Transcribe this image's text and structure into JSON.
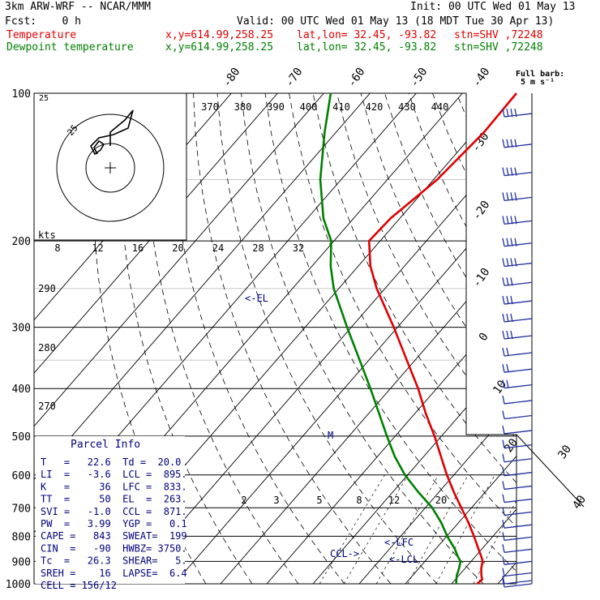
{
  "header": {
    "model": "3km ARW-WRF -- NCAR/MMM",
    "init": "Init: 00 UTC Wed 01 May 13",
    "fcst": "Fcst:    0 h",
    "valid": "Valid: 00 UTC Wed 01 May 13 (18 MDT Tue 30 Apr 13)",
    "temp_legend": "Temperature",
    "dew_legend": "Dewpoint temperature",
    "xy": "x,y=614.99,258.25",
    "latlon": "lat,lon= 32.45, -93.82",
    "stn": "stn=SHV ,72248"
  },
  "colors": {
    "temperature": "#e00000",
    "dewpoint": "#008000",
    "annotation": "#00007f",
    "barb": "#1f2fa0"
  },
  "barb_legend": {
    "line1": "Full barb:",
    "line2": "5 m s⁻¹"
  },
  "parcel_info": {
    "title": "Parcel Info",
    "rows": [
      "T   =   22.6  Td =  20.0",
      "LI  =   -3.6  LCL =  895.",
      "K   =     36  LFC =  833.",
      "TT  =     50  EL  =  263.",
      "SVI =   -1.0  CCL =  871.",
      "PW  =   3.99  YGP =   0.1",
      "CAPE =   843  SWEAT=  199",
      "CIN  =   -90  HWBZ= 3750.",
      "Tc  =   26.3  SHEAR=   5.",
      "SREH =    16  LAPSE=  6.4",
      "CELL = 156/12"
    ]
  },
  "chart_data": {
    "type": "line",
    "title": "",
    "y_axis_label": "",
    "pressure_ticks": [
      "100",
      "200",
      "300",
      "400",
      "500",
      "600",
      "700",
      "800",
      "900",
      "1000"
    ],
    "pressure_levels": [
      100,
      200,
      300,
      400,
      500,
      600,
      700,
      800,
      900,
      1000
    ],
    "isotherm_labels": [
      "-80",
      "-70",
      "-60",
      "-50",
      "-40",
      "-30",
      "-20",
      "-10",
      "0",
      "10",
      "20",
      "30",
      "40"
    ],
    "theta_labels": [
      "370",
      "380",
      "390",
      "400",
      "410",
      "420",
      "430",
      "440"
    ],
    "dry_adiabat_labels": [
      "290",
      "280",
      "270"
    ],
    "wind_speed_label": "kts",
    "wind_speed_ticks": [
      "8",
      "12",
      "16",
      "20",
      "24",
      "28",
      "32"
    ],
    "mixing_ratio_labels": [
      "2",
      "3",
      "5",
      "8",
      "12",
      "20"
    ],
    "hodograph_ring_label": "25",
    "annotations": {
      "el": "<-EL",
      "lfc": "<-LFC",
      "lcl": "<-LCL",
      "ccl": "CCL->",
      "m": "M"
    },
    "series": [
      {
        "name": "Temperature",
        "pressure": [
          1000,
          980,
          960,
          930,
          900,
          880,
          850,
          800,
          750,
          700,
          650,
          600,
          550,
          500,
          450,
          400,
          350,
          300,
          250,
          225,
          200,
          180,
          150,
          120,
          100
        ],
        "temp_c": [
          25.5,
          25.8,
          24.8,
          23.5,
          22.5,
          21.3,
          19.3,
          15.9,
          12.1,
          7.8,
          3.2,
          -1.5,
          -6.3,
          -11.5,
          -17.6,
          -24.0,
          -31.8,
          -40.8,
          -51.8,
          -57.4,
          -62.4,
          -62.0,
          -59.2,
          -58.0,
          -58.3
        ]
      },
      {
        "name": "Dewpoint temperature",
        "pressure": [
          1000,
          980,
          960,
          930,
          900,
          880,
          850,
          800,
          750,
          700,
          650,
          600,
          550,
          500,
          450,
          400,
          350,
          300,
          250,
          225,
          200,
          180,
          150,
          120,
          100
        ],
        "temp_c": [
          21.0,
          20.2,
          19.5,
          18.7,
          17.7,
          16.2,
          14.2,
          10.1,
          6.2,
          1.5,
          -4.5,
          -10.6,
          -16.3,
          -21.8,
          -27.7,
          -34.3,
          -42.0,
          -50.9,
          -61.1,
          -66.0,
          -70.6,
          -76.5,
          -84.5,
          -92.5,
          -98.5
        ]
      }
    ],
    "wind_barbs": {
      "pressure": [
        110,
        127,
        145,
        163,
        182,
        202,
        222,
        243,
        265,
        288,
        312,
        338,
        365,
        393,
        423,
        454,
        487,
        521,
        556,
        593,
        632,
        672,
        714,
        758,
        803,
        850,
        900,
        950,
        985,
        1000
      ],
      "speed_ms": [
        20,
        20,
        20,
        20,
        20,
        20,
        20,
        17,
        15,
        15,
        15,
        10,
        10,
        10,
        5,
        5,
        5,
        5,
        5,
        5,
        5,
        5,
        5,
        5,
        5,
        5,
        5,
        5,
        5,
        5
      ]
    }
  }
}
